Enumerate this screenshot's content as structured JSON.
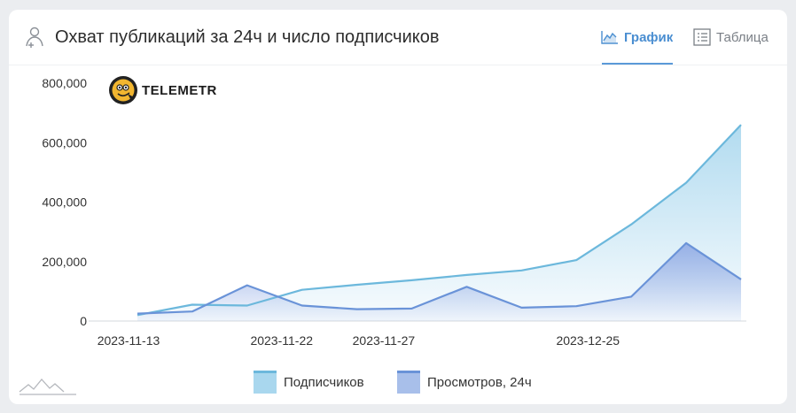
{
  "header": {
    "title": "Охват публикаций за 24ч и число подписчиков",
    "tabs": [
      {
        "label": "График",
        "active": true,
        "icon": "line-chart-icon"
      },
      {
        "label": "Таблица",
        "active": false,
        "icon": "table-list-icon"
      }
    ]
  },
  "logo": {
    "text": "TELEMETR"
  },
  "colors": {
    "subscribers_line": "#6cb8dc",
    "subscribers_fill": "#a9d7ee",
    "views_line": "#6a93d8",
    "views_fill": "#a8bfea",
    "accent": "#4a8ed1"
  },
  "chart_data": {
    "type": "area",
    "x": [
      "2023-11-13",
      "2023-11-16",
      "2023-11-19",
      "2023-11-22",
      "2023-11-24",
      "2023-11-27",
      "2023-11-29",
      "2023-12-02",
      "2023-12-05",
      "2023-12-25",
      "2023-12-28",
      "2023-12-31",
      "2024-01-03"
    ],
    "xticks": [
      "2023-11-13",
      "2023-11-22",
      "2023-11-27",
      "2023-12-25"
    ],
    "ylim": [
      0,
      800000
    ],
    "yticks": [
      "0",
      "200,000",
      "400,000",
      "600,000",
      "800,000"
    ],
    "grid": false,
    "legend_position": "bottom",
    "series": [
      {
        "name": "Подписчиков",
        "values": [
          20000,
          55000,
          52000,
          105000,
          122000,
          137000,
          155000,
          170000,
          205000,
          325000,
          465000,
          660000,
          660000
        ]
      },
      {
        "name": "Просмотров, 24ч",
        "values": [
          25000,
          32000,
          120000,
          52000,
          40000,
          42000,
          115000,
          45000,
          50000,
          82000,
          262000,
          140000,
          140000
        ]
      }
    ]
  }
}
